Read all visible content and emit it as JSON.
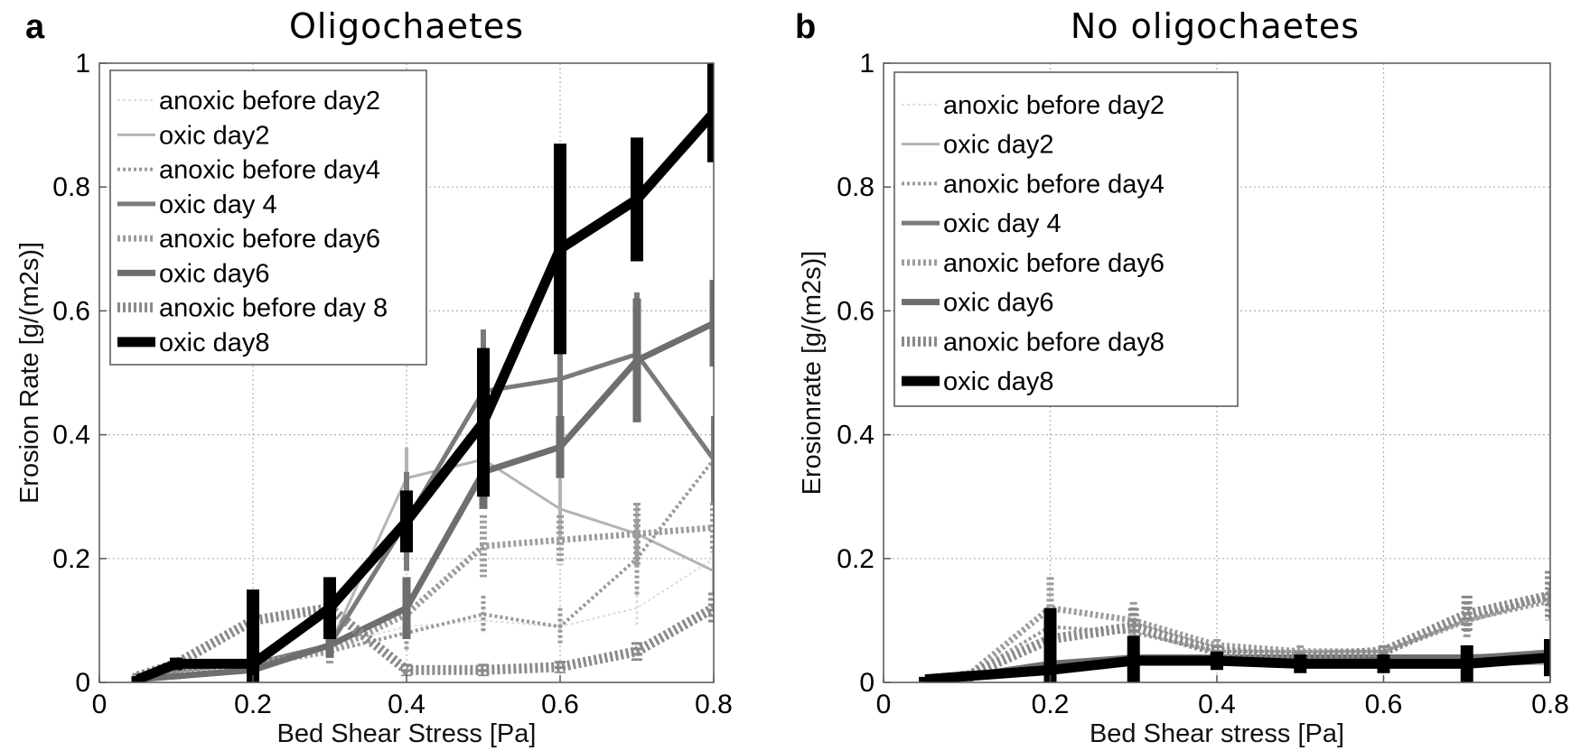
{
  "chart_data": [
    {
      "panel_letter": "a",
      "type": "line",
      "title": "Oligochaetes",
      "xlabel": "Bed Shear Stress [Pa]",
      "ylabel": "Erosion Rate [g/(m2s)]",
      "xlim": [
        0,
        0.8
      ],
      "ylim": [
        0,
        1
      ],
      "xticks": [
        "0",
        "0.2",
        "0.4",
        "0.6",
        "0.8"
      ],
      "yticks": [
        "0",
        "0.2",
        "0.4",
        "0.6",
        "0.8",
        "1"
      ],
      "grid": true,
      "legend_position": "top-left",
      "x": [
        0.05,
        0.1,
        0.2,
        0.3,
        0.4,
        0.5,
        0.6,
        0.7,
        0.8
      ],
      "series": [
        {
          "name": "anoxic before day2",
          "color": "#dcdcdc",
          "style": "dotted-thin",
          "values": [
            0.01,
            0.02,
            0.03,
            0.06,
            0.09,
            0.1,
            0.09,
            0.12,
            0.2
          ],
          "errors": [
            0.005,
            0.005,
            0.01,
            0.02,
            0.02,
            0.02,
            0.02,
            0.03,
            0.04
          ]
        },
        {
          "name": "oxic day2",
          "color": "#b4b4b4",
          "style": "solid-thin",
          "values": [
            0.01,
            0.02,
            0.03,
            0.06,
            0.33,
            0.36,
            0.28,
            0.24,
            0.18
          ],
          "errors": [
            0.005,
            0.005,
            0.01,
            0.02,
            0.05,
            0.06,
            0.05,
            0.05,
            0.04
          ]
        },
        {
          "name": "anoxic before day4",
          "color": "#9a9a9a",
          "style": "dotted-medium",
          "values": [
            0.01,
            0.02,
            0.03,
            0.05,
            0.08,
            0.11,
            0.09,
            0.2,
            0.36
          ],
          "errors": [
            0.005,
            0.005,
            0.01,
            0.02,
            0.03,
            0.03,
            0.03,
            0.06,
            0.07
          ]
        },
        {
          "name": "oxic day 4",
          "color": "#7a7a7a",
          "style": "solid-medium",
          "values": [
            0.01,
            0.02,
            0.03,
            0.06,
            0.26,
            0.47,
            0.49,
            0.53,
            0.36
          ],
          "errors": [
            0.005,
            0.005,
            0.01,
            0.02,
            0.08,
            0.1,
            0.07,
            0.1,
            0.07
          ]
        },
        {
          "name": "anoxic before day6",
          "color": "#9c9c9c",
          "style": "dotted-thick",
          "values": [
            0.01,
            0.02,
            0.03,
            0.05,
            0.11,
            0.22,
            0.23,
            0.24,
            0.25
          ],
          "errors": [
            0.005,
            0.005,
            0.01,
            0.02,
            0.03,
            0.05,
            0.04,
            0.05,
            0.04
          ]
        },
        {
          "name": "oxic day6",
          "color": "#6e6e6e",
          "style": "solid-thick",
          "values": [
            0.005,
            0.01,
            0.02,
            0.06,
            0.12,
            0.34,
            0.38,
            0.52,
            0.58
          ],
          "errors": [
            0.005,
            0.005,
            0.01,
            0.02,
            0.05,
            0.06,
            0.05,
            0.1,
            0.07
          ]
        },
        {
          "name": "anoxic before day 8",
          "color": "#8a8a8a",
          "style": "dotted-xthick",
          "values": [
            0.01,
            0.03,
            0.1,
            0.12,
            0.02,
            0.02,
            0.025,
            0.05,
            0.12
          ],
          "errors": [
            0.005,
            0.005,
            0.01,
            0.02,
            0.01,
            0.01,
            0.01,
            0.015,
            0.025
          ]
        },
        {
          "name": "oxic day8",
          "color": "#000000",
          "style": "solid-xthick",
          "values": [
            0.005,
            0.03,
            0.03,
            0.12,
            0.26,
            0.42,
            0.7,
            0.78,
            0.92
          ],
          "errors": [
            0.005,
            0.01,
            0.12,
            0.05,
            0.05,
            0.12,
            0.17,
            0.1,
            0.08
          ]
        }
      ]
    },
    {
      "panel_letter": "b",
      "type": "line",
      "title": "No oligochaetes",
      "xlabel": "Bed Shear stress [Pa]",
      "ylabel": "Erosionrate [g/(m2s)]",
      "xlim": [
        0,
        0.8
      ],
      "ylim": [
        0,
        1
      ],
      "xticks": [
        "0",
        "0.2",
        "0.4",
        "0.6",
        "0.8"
      ],
      "yticks": [
        "0",
        "0.2",
        "0.4",
        "0.6",
        "0.8",
        "1"
      ],
      "grid": true,
      "legend_position": "top-left",
      "x": [
        0.05,
        0.1,
        0.2,
        0.3,
        0.4,
        0.5,
        0.6,
        0.7,
        0.8
      ],
      "series": [
        {
          "name": "anoxic before day2",
          "color": "#dcdcdc",
          "style": "dotted-thin",
          "values": [
            0.005,
            0.01,
            0.02,
            0.03,
            0.03,
            0.03,
            0.03,
            0.03,
            0.03
          ],
          "errors": [
            0.003,
            0.004,
            0.005,
            0.005,
            0.005,
            0.005,
            0.005,
            0.005,
            0.005
          ]
        },
        {
          "name": "oxic day2",
          "color": "#b4b4b4",
          "style": "solid-thin",
          "values": [
            0.005,
            0.01,
            0.02,
            0.03,
            0.03,
            0.03,
            0.03,
            0.03,
            0.03
          ],
          "errors": [
            0.003,
            0.004,
            0.005,
            0.005,
            0.005,
            0.005,
            0.005,
            0.005,
            0.005
          ]
        },
        {
          "name": "anoxic before day4",
          "color": "#9a9a9a",
          "style": "dotted-medium",
          "values": [
            0.005,
            0.01,
            0.09,
            0.08,
            0.05,
            0.05,
            0.05,
            0.1,
            0.13
          ],
          "errors": [
            0.003,
            0.005,
            0.03,
            0.02,
            0.01,
            0.01,
            0.01,
            0.03,
            0.03
          ]
        },
        {
          "name": "oxic day 4",
          "color": "#7a7a7a",
          "style": "solid-medium",
          "values": [
            0.005,
            0.01,
            0.02,
            0.04,
            0.04,
            0.04,
            0.04,
            0.04,
            0.05
          ],
          "errors": [
            0.003,
            0.004,
            0.005,
            0.01,
            0.008,
            0.008,
            0.008,
            0.008,
            0.01
          ]
        },
        {
          "name": "anoxic before day6",
          "color": "#9c9c9c",
          "style": "dotted-thick",
          "values": [
            0.005,
            0.01,
            0.12,
            0.1,
            0.06,
            0.05,
            0.05,
            0.1,
            0.14
          ],
          "errors": [
            0.003,
            0.005,
            0.05,
            0.03,
            0.01,
            0.01,
            0.01,
            0.03,
            0.04
          ]
        },
        {
          "name": "oxic day6",
          "color": "#6e6e6e",
          "style": "solid-thick",
          "values": [
            0.005,
            0.01,
            0.03,
            0.04,
            0.04,
            0.04,
            0.04,
            0.04,
            0.045
          ],
          "errors": [
            0.003,
            0.004,
            0.01,
            0.01,
            0.008,
            0.008,
            0.008,
            0.008,
            0.01
          ]
        },
        {
          "name": "anoxic before day8",
          "color": "#8a8a8a",
          "style": "dotted-xthick",
          "values": [
            0.005,
            0.01,
            0.07,
            0.09,
            0.05,
            0.04,
            0.05,
            0.11,
            0.14
          ],
          "errors": [
            0.003,
            0.005,
            0.04,
            0.03,
            0.01,
            0.01,
            0.01,
            0.03,
            0.04
          ]
        },
        {
          "name": "oxic day8",
          "color": "#000000",
          "style": "solid-xthick",
          "values": [
            0.005,
            0.01,
            0.02,
            0.035,
            0.035,
            0.03,
            0.03,
            0.03,
            0.04
          ],
          "errors": [
            0.004,
            0.008,
            0.1,
            0.04,
            0.015,
            0.015,
            0.015,
            0.03,
            0.03
          ]
        }
      ]
    }
  ]
}
